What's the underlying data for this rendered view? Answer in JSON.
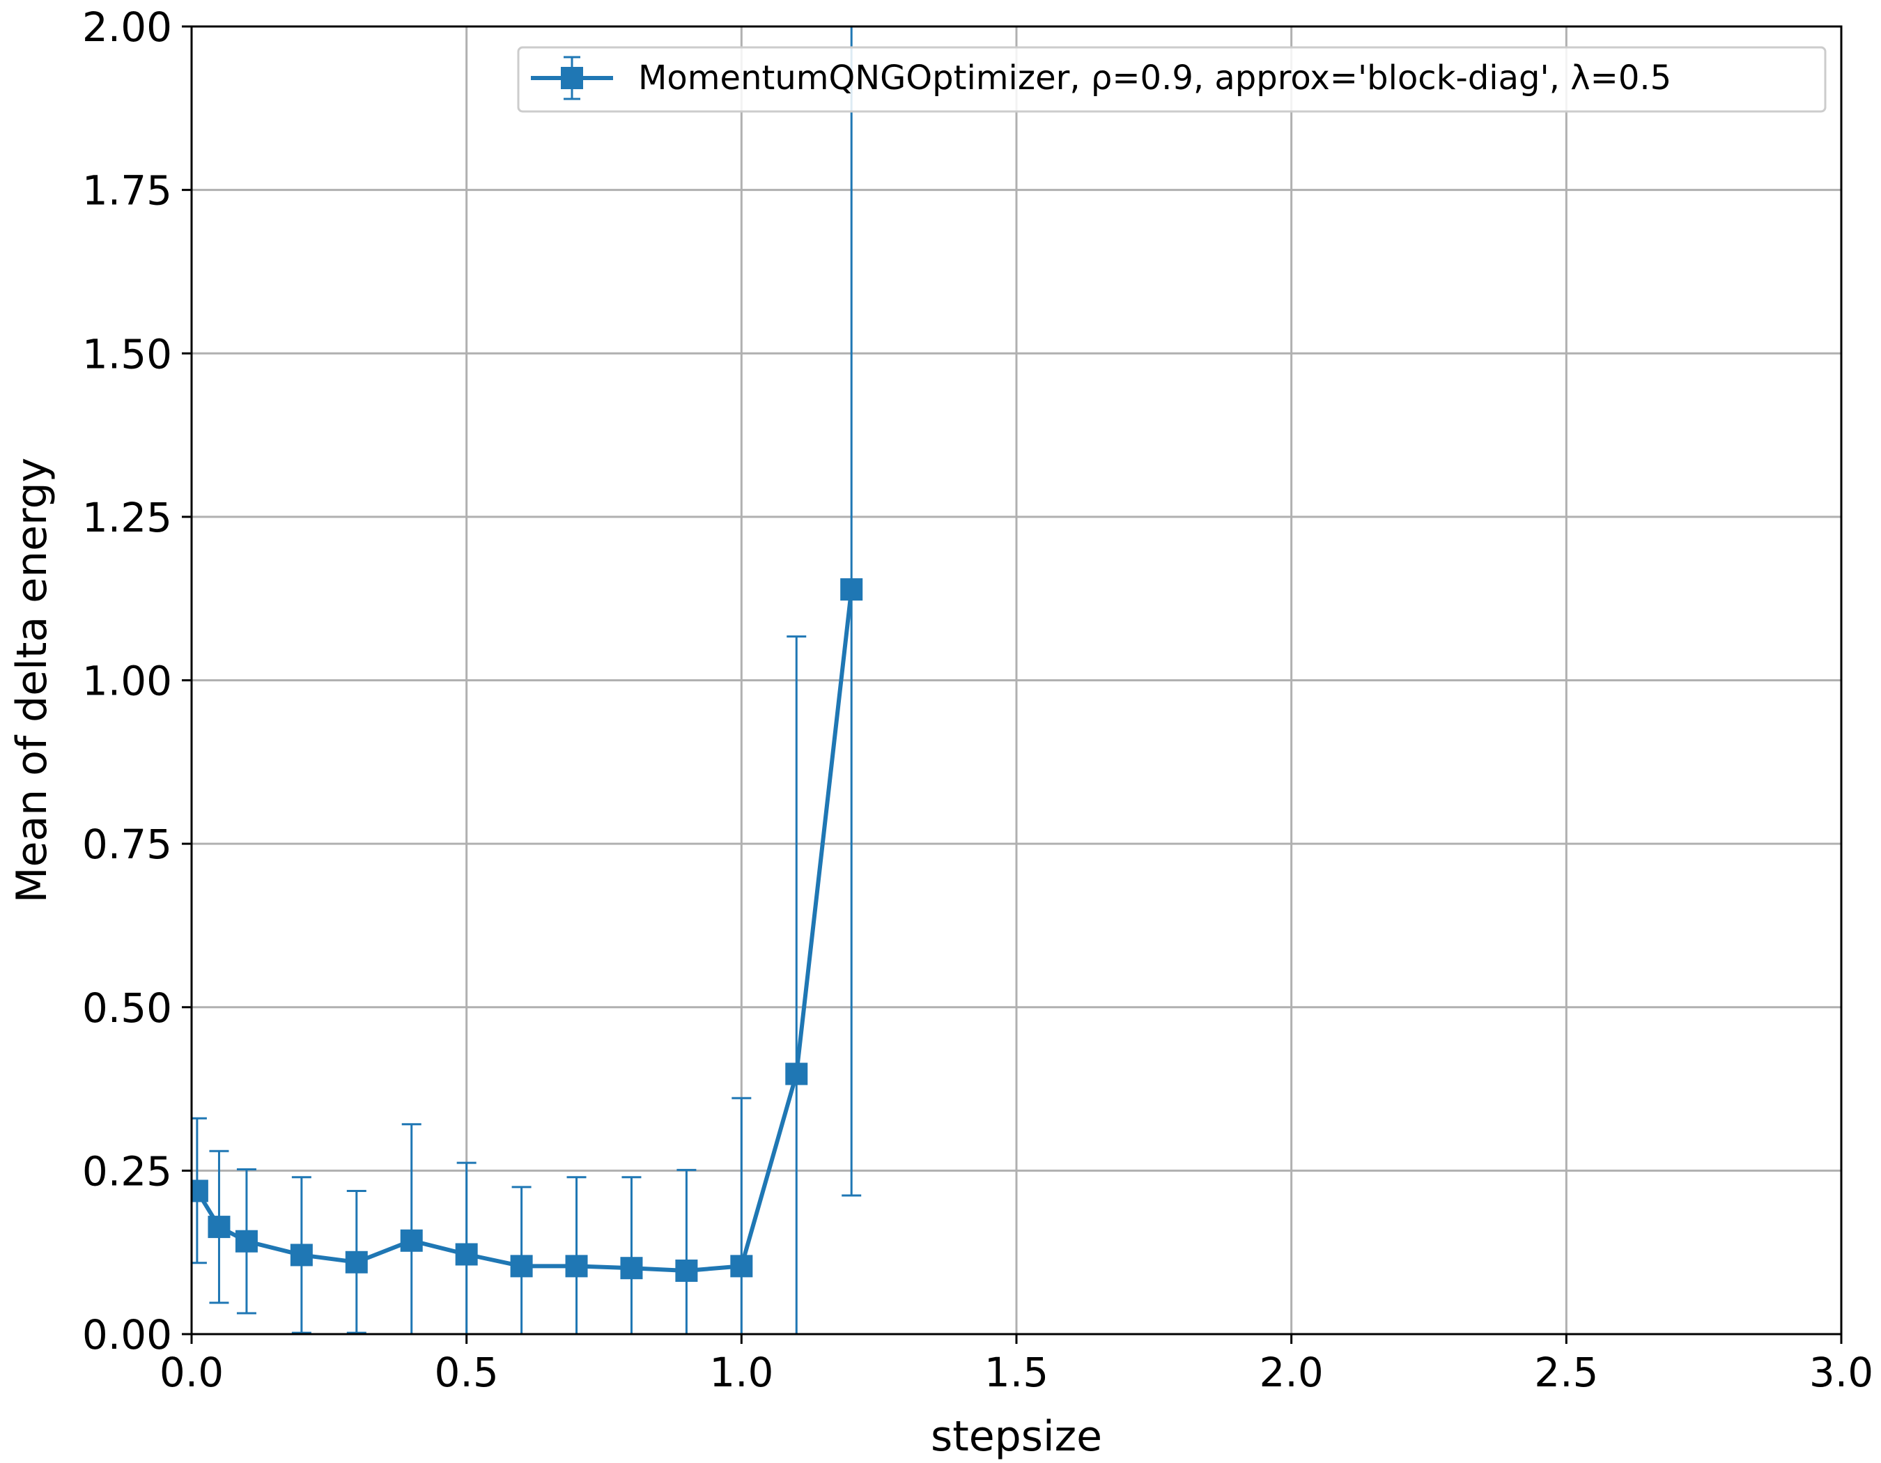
{
  "chart_data": {
    "type": "line",
    "title": "",
    "xlabel": "stepsize",
    "ylabel": "Mean of delta energy",
    "xlim": [
      0.0,
      3.0
    ],
    "ylim": [
      0.0,
      2.0
    ],
    "x_ticks": [
      "0.0",
      "0.5",
      "1.0",
      "1.5",
      "2.0",
      "2.5",
      "3.0"
    ],
    "y_ticks": [
      "0.00",
      "0.25",
      "0.50",
      "0.75",
      "1.00",
      "1.25",
      "1.50",
      "1.75",
      "2.00"
    ],
    "grid": true,
    "legend_position": "top-right",
    "marker": "square",
    "error_bars": true,
    "series": [
      {
        "name": "MomentumQNGOptimizer, ρ=0.9, approx='block-diag', λ=0.5",
        "color": "#1f77b4",
        "x": [
          0.01,
          0.05,
          0.1,
          0.2,
          0.3,
          0.4,
          0.5,
          0.6,
          0.7,
          0.8,
          0.9,
          1.0,
          1.1,
          1.2
        ],
        "y": [
          0.219,
          0.164,
          0.142,
          0.121,
          0.11,
          0.143,
          0.122,
          0.104,
          0.104,
          0.101,
          0.097,
          0.104,
          0.398,
          1.139
        ],
        "err_low": [
          0.109,
          0.048,
          0.032,
          0.002,
          0.002,
          0.0,
          0.0,
          0.0,
          0.0,
          0.0,
          0.0,
          0.0,
          0.0,
          0.212
        ],
        "err_high": [
          0.33,
          0.28,
          0.252,
          0.24,
          0.219,
          0.321,
          0.262,
          0.225,
          0.24,
          0.24,
          0.251,
          0.361,
          1.067,
          2.5
        ]
      }
    ]
  }
}
